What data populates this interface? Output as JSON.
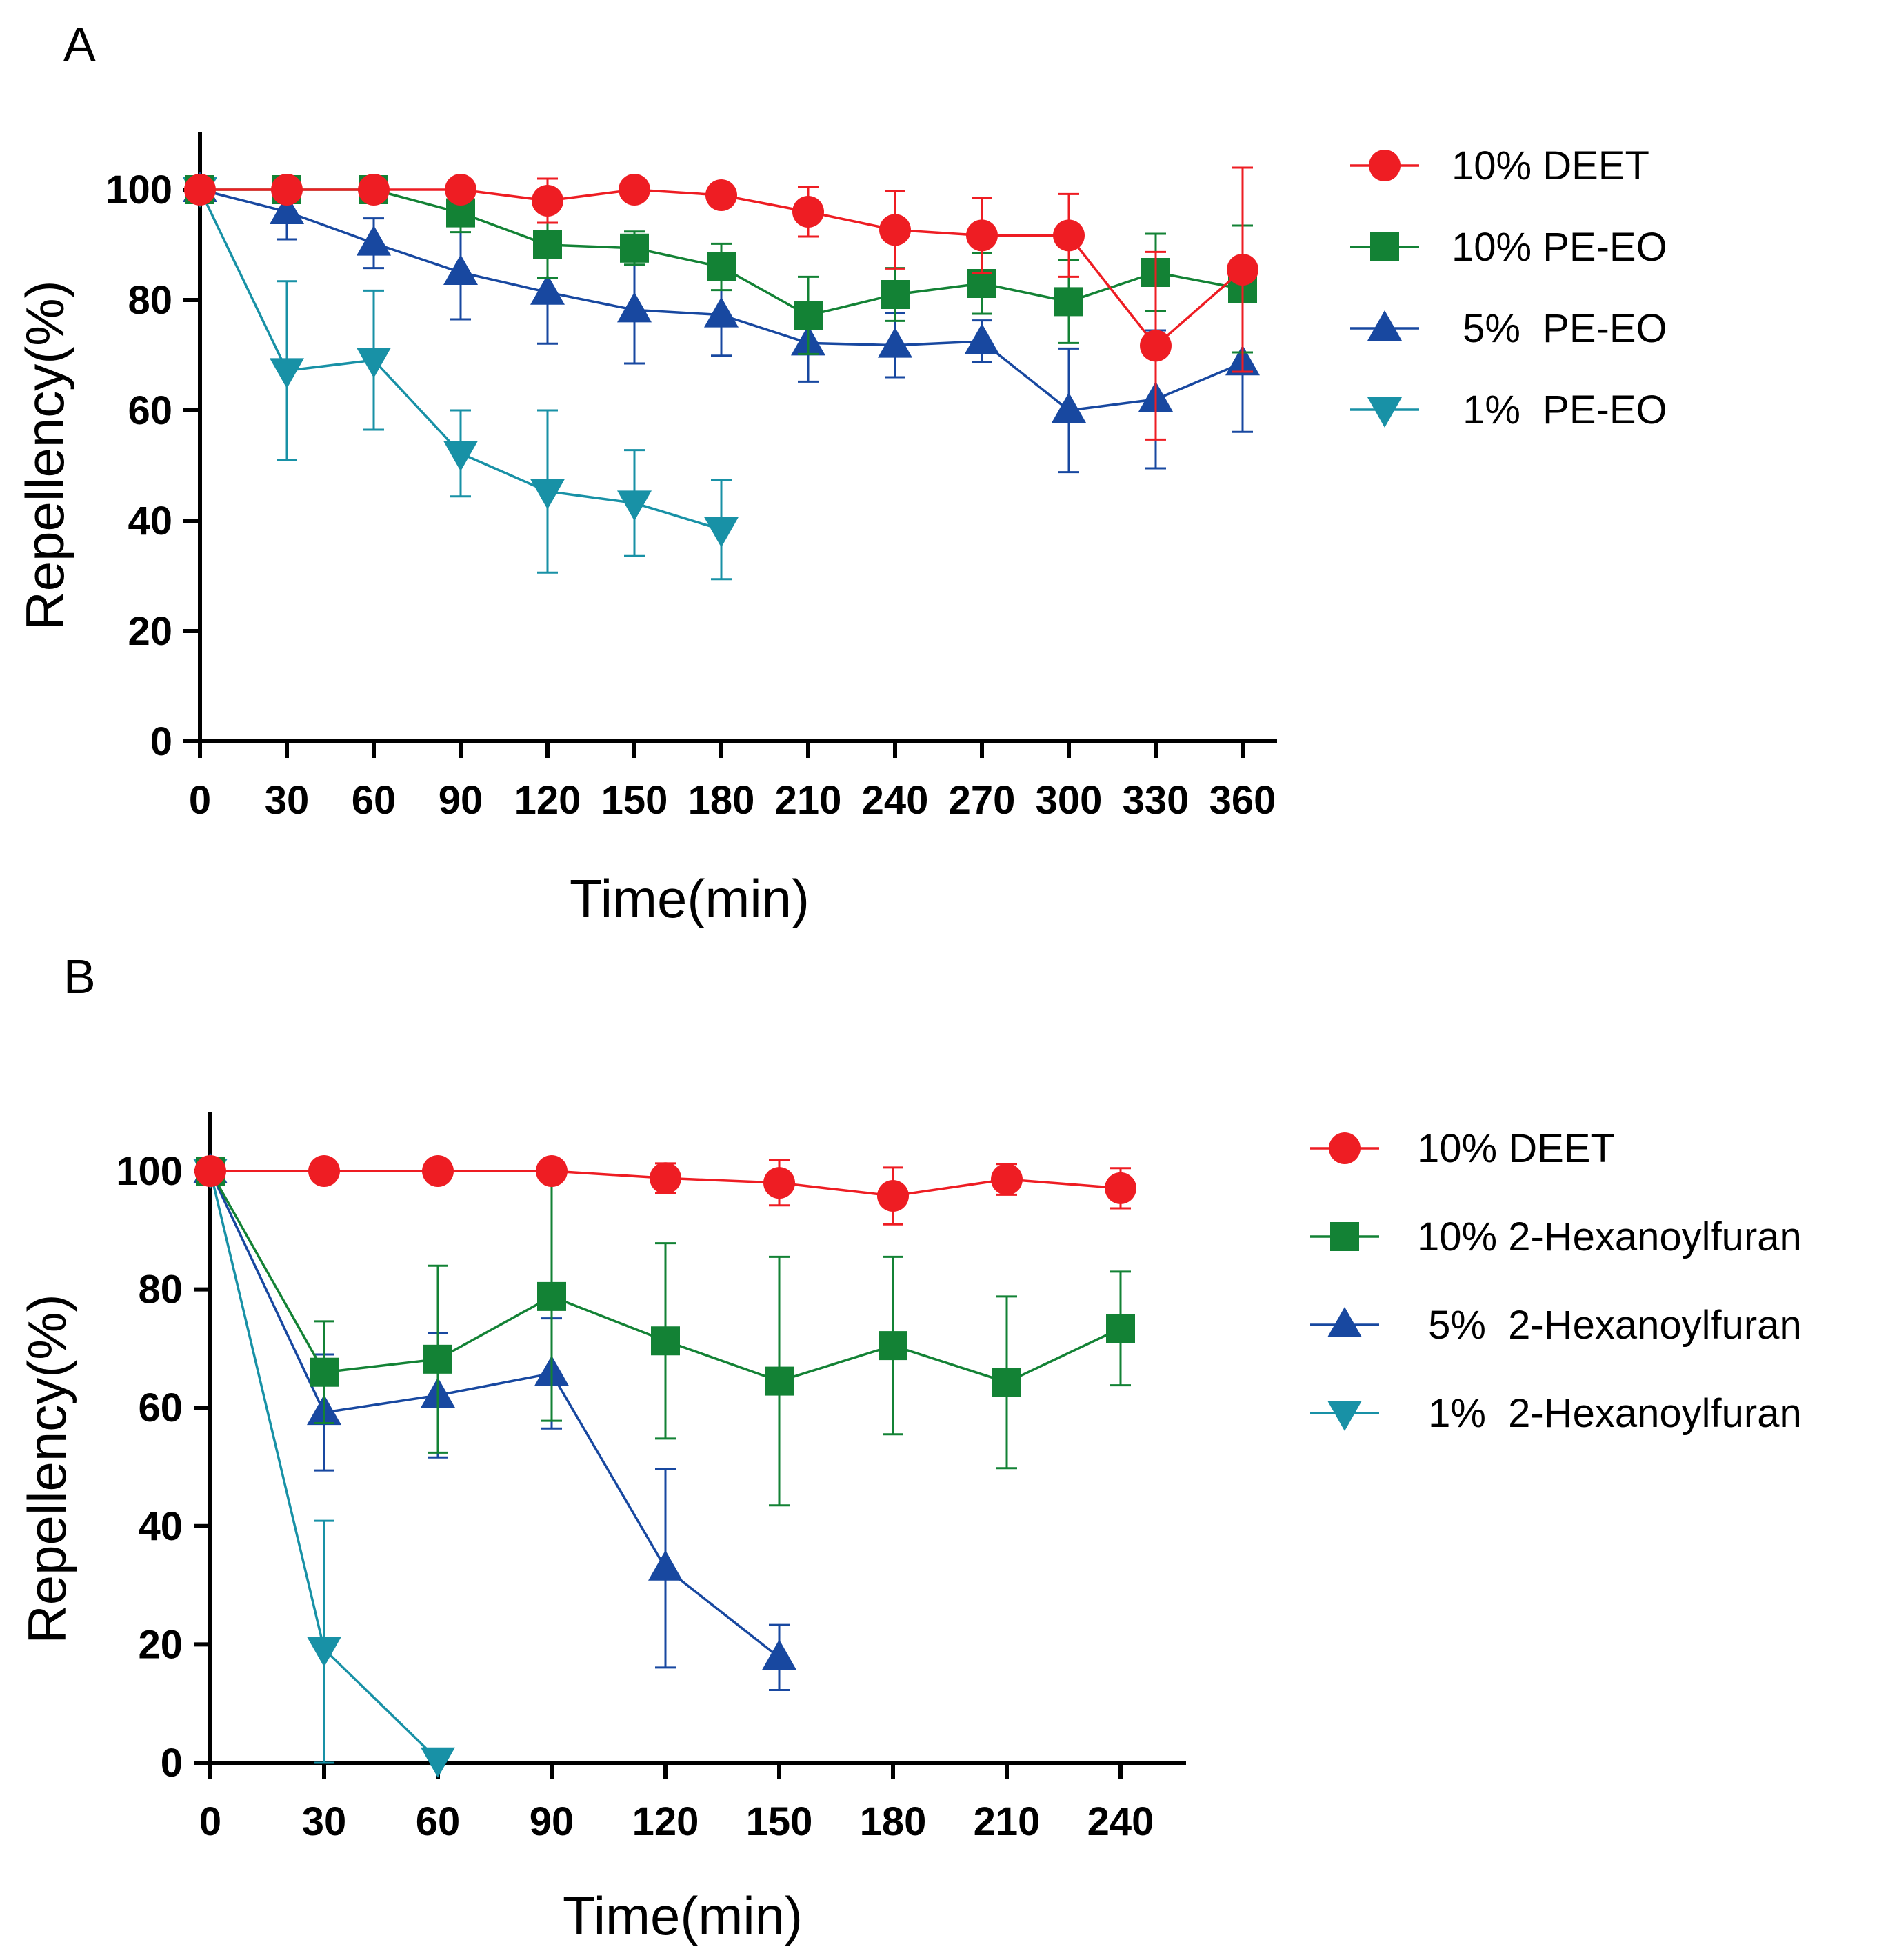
{
  "chart_data": [
    {
      "panel": "A",
      "type": "line",
      "xlabel": "Time(min)",
      "ylabel": "Repellency(%)",
      "xlim": [
        0,
        375
      ],
      "ylim": [
        0,
        110
      ],
      "x_ticks": [
        0,
        30,
        60,
        90,
        120,
        150,
        180,
        210,
        240,
        270,
        300,
        330,
        360
      ],
      "y_ticks": [
        0,
        20,
        40,
        60,
        80,
        100
      ],
      "legend": "top-right",
      "series": [
        {
          "name": "10% DEET",
          "label": "10% DEET",
          "color": "#ee1d23",
          "marker": "circle",
          "x": [
            0,
            30,
            60,
            90,
            120,
            150,
            180,
            210,
            240,
            270,
            300,
            330,
            360
          ],
          "y": [
            100,
            100,
            100,
            100,
            98,
            100,
            99,
            96,
            92.7,
            91.7,
            91.7,
            71.7,
            85.5
          ],
          "err": [
            0,
            0,
            0,
            0,
            4,
            0,
            0,
            4.5,
            7,
            6.8,
            7.5,
            17,
            18.5
          ]
        },
        {
          "name": "10% PE-EO",
          "label": "10% PE-EO",
          "color": "#138235",
          "marker": "square",
          "x": [
            0,
            30,
            60,
            90,
            120,
            150,
            180,
            210,
            240,
            270,
            300,
            330,
            360
          ],
          "y": [
            100,
            100,
            100,
            95.8,
            90,
            89.4,
            86,
            77.2,
            81,
            83,
            79.7,
            85,
            82
          ],
          "err": [
            0,
            0,
            0,
            3.5,
            6,
            3,
            4.2,
            7,
            4.8,
            5.5,
            7.5,
            7,
            11.5
          ]
        },
        {
          "name": "5% PE-EO",
          "label": " 5%  PE-EO",
          "color": "#1848a0",
          "marker": "triangle-up",
          "x": [
            0,
            30,
            60,
            90,
            120,
            150,
            180,
            210,
            240,
            270,
            300,
            330,
            360
          ],
          "y": [
            100,
            96,
            90.3,
            85,
            81.4,
            78.2,
            77.3,
            72.2,
            71.8,
            72.5,
            60,
            62,
            68.6
          ],
          "err": [
            0,
            5,
            4.5,
            8.5,
            9.3,
            9.7,
            7.4,
            7,
            5.8,
            3.8,
            11.2,
            12.5,
            12.5
          ]
        },
        {
          "name": "1% PE-EO",
          "label": " 1%  PE-EO",
          "color": "#1891a6",
          "marker": "triangle-down",
          "x": [
            0,
            30,
            60,
            90,
            120,
            150,
            180
          ],
          "y": [
            100,
            67.2,
            69.1,
            52.2,
            45.3,
            43.2,
            38.4
          ],
          "err": [
            0,
            16.2,
            12.6,
            7.8,
            14.7,
            9.6,
            9
          ]
        }
      ]
    },
    {
      "panel": "B",
      "type": "line",
      "xlabel": "Time(min)",
      "ylabel": "Repellency(%)",
      "xlim": [
        0,
        255
      ],
      "ylim": [
        0,
        110
      ],
      "x_ticks": [
        0,
        30,
        60,
        90,
        120,
        150,
        180,
        210,
        240
      ],
      "y_ticks": [
        0,
        20,
        40,
        60,
        80,
        100
      ],
      "legend": "top-right",
      "series": [
        {
          "name": "10% DEET",
          "label": "10% DEET",
          "color": "#ee1d23",
          "marker": "circle",
          "x": [
            0,
            30,
            60,
            90,
            120,
            150,
            180,
            210,
            240
          ],
          "y": [
            100,
            100,
            100,
            100,
            98.8,
            98,
            95.8,
            98.6,
            97.1
          ],
          "err": [
            0,
            0,
            0,
            0,
            2.5,
            3.8,
            4.8,
            2.6,
            3.4
          ]
        },
        {
          "name": "10% 2-Hexanoylfuran",
          "label": "10% 2-Hexanoylfuran",
          "color": "#138235",
          "marker": "square",
          "x": [
            0,
            30,
            60,
            90,
            120,
            150,
            180,
            210,
            240
          ],
          "y": [
            100,
            66,
            68.2,
            78.8,
            71.3,
            64.5,
            70.5,
            64.3,
            73.4
          ],
          "err": [
            0,
            8.6,
            15.8,
            21,
            16.5,
            21,
            15,
            14.5,
            9.6
          ]
        },
        {
          "name": "5% 2-Hexanoylfuran",
          "label": " 5%  2-Hexanoylfuran",
          "color": "#1848a0",
          "marker": "triangle-up",
          "x": [
            0,
            30,
            60,
            90,
            120,
            150
          ],
          "y": [
            100,
            59.2,
            62.1,
            65.8,
            32.9,
            17.8
          ],
          "err": [
            0,
            9.8,
            10.5,
            9.3,
            16.8,
            5.5
          ]
        },
        {
          "name": "1% 2-Hexanoylfuran",
          "label": " 1%  2-Hexanoylfuran",
          "color": "#1891a6",
          "marker": "triangle-down",
          "x": [
            0,
            30,
            60
          ],
          "y": [
            100,
            19.2,
            0.5
          ],
          "err": [
            0,
            21.7,
            0
          ]
        }
      ]
    }
  ]
}
